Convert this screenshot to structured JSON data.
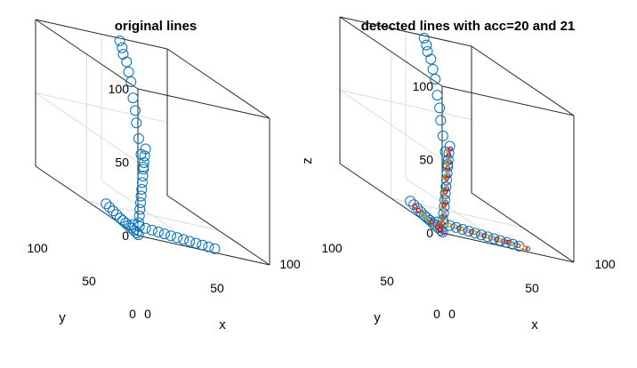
{
  "chart_data": [
    {
      "type": "scatter",
      "projection": "3d",
      "title": "original lines",
      "xlabel": "x",
      "ylabel": "y",
      "zlabel": "",
      "xlim": [
        0,
        100
      ],
      "ylim": [
        0,
        100
      ],
      "zlim": [
        0,
        100
      ],
      "xticks": [
        "0",
        "50",
        "100"
      ],
      "yticks": [
        "0",
        "50",
        "100"
      ],
      "zticks": [
        "0",
        "50",
        "100"
      ],
      "grid": true,
      "legend": "none",
      "series": [
        {
          "color": "#0072BD",
          "marker": "circle-open",
          "points": [
            [
              3,
              3,
              8
            ],
            [
              5,
              5,
              12
            ],
            [
              7,
              7,
              16
            ],
            [
              9,
              9,
              20
            ],
            [
              11,
              11,
              24
            ],
            [
              13,
              13,
              28
            ],
            [
              15,
              15,
              32
            ],
            [
              17,
              17,
              36
            ],
            [
              19,
              19,
              40
            ],
            [
              21,
              21,
              44
            ],
            [
              23,
              23,
              48
            ],
            [
              26,
              26,
              52
            ],
            [
              8,
              15,
              2
            ],
            [
              12,
              14,
              2
            ],
            [
              16,
              13,
              2
            ],
            [
              20,
              12,
              2
            ],
            [
              24,
              11,
              2
            ],
            [
              28,
              10,
              2
            ],
            [
              32,
              9,
              2
            ],
            [
              36,
              8,
              2
            ],
            [
              40,
              7,
              2
            ],
            [
              44,
              6,
              2
            ],
            [
              48,
              5,
              2
            ],
            [
              52,
              4,
              2
            ],
            [
              56,
              3,
              2
            ],
            [
              60,
              2,
              2
            ],
            [
              2,
              2,
              0
            ],
            [
              3,
              5,
              0
            ],
            [
              4,
              9,
              0
            ],
            [
              5,
              13,
              0
            ],
            [
              6,
              17,
              0
            ],
            [
              7,
              21,
              0
            ],
            [
              8,
              25,
              0
            ],
            [
              9,
              29,
              0
            ],
            [
              11,
              35,
              0
            ],
            [
              13,
              41,
              0
            ],
            [
              15,
              47,
              0
            ],
            [
              17,
              53,
              0
            ],
            [
              50,
              82,
              104
            ],
            [
              51,
              81,
              100
            ],
            [
              51,
              80,
              96
            ],
            [
              52,
              78,
              92
            ],
            [
              52,
              76,
              86
            ],
            [
              53,
              75,
              80
            ],
            [
              53,
              73,
              70
            ],
            [
              54,
              72,
              62
            ],
            [
              54,
              71,
              54
            ],
            [
              55,
              70,
              44
            ],
            [
              56,
              69,
              34
            ],
            [
              57,
              68,
              26
            ]
          ]
        }
      ]
    },
    {
      "type": "scatter",
      "projection": "3d",
      "title": "detected lines with acc=20 and 21",
      "xlabel": "x",
      "ylabel": "y",
      "zlabel": "z",
      "xlim": [
        0,
        100
      ],
      "ylim": [
        0,
        100
      ],
      "zlim": [
        0,
        100
      ],
      "xticks": [
        "0",
        "50",
        "100"
      ],
      "yticks": [
        "0",
        "50",
        "100"
      ],
      "zticks": [
        "0",
        "50",
        "100"
      ],
      "grid": true,
      "legend": "none",
      "series": [
        {
          "color": "#0072BD",
          "marker": "circle-open",
          "points": [
            [
              3,
              3,
              8
            ],
            [
              5,
              5,
              12
            ],
            [
              7,
              7,
              16
            ],
            [
              9,
              9,
              20
            ],
            [
              11,
              11,
              24
            ],
            [
              13,
              13,
              28
            ],
            [
              15,
              15,
              32
            ],
            [
              17,
              17,
              36
            ],
            [
              19,
              19,
              40
            ],
            [
              21,
              21,
              44
            ],
            [
              23,
              23,
              48
            ],
            [
              26,
              26,
              52
            ],
            [
              8,
              15,
              2
            ],
            [
              12,
              14,
              2
            ],
            [
              16,
              13,
              2
            ],
            [
              20,
              12,
              2
            ],
            [
              24,
              11,
              2
            ],
            [
              28,
              10,
              2
            ],
            [
              32,
              9,
              2
            ],
            [
              36,
              8,
              2
            ],
            [
              40,
              7,
              2
            ],
            [
              44,
              6,
              2
            ],
            [
              48,
              5,
              2
            ],
            [
              52,
              4,
              2
            ],
            [
              56,
              3,
              2
            ],
            [
              60,
              2,
              2
            ],
            [
              2,
              2,
              0
            ],
            [
              3,
              5,
              0
            ],
            [
              4,
              9,
              0
            ],
            [
              5,
              13,
              0
            ],
            [
              6,
              17,
              0
            ],
            [
              7,
              21,
              0
            ],
            [
              8,
              25,
              0
            ],
            [
              9,
              29,
              0
            ],
            [
              11,
              35,
              0
            ],
            [
              13,
              41,
              0
            ],
            [
              15,
              47,
              0
            ],
            [
              17,
              53,
              0
            ],
            [
              50,
              82,
              104
            ],
            [
              51,
              81,
              100
            ],
            [
              51,
              80,
              96
            ],
            [
              52,
              78,
              92
            ],
            [
              52,
              76,
              86
            ],
            [
              53,
              75,
              80
            ],
            [
              53,
              73,
              70
            ],
            [
              54,
              72,
              62
            ],
            [
              54,
              71,
              54
            ],
            [
              55,
              70,
              44
            ],
            [
              56,
              69,
              34
            ],
            [
              57,
              68,
              26
            ]
          ]
        },
        {
          "color": "#D95319",
          "marker": "circle-small",
          "points": [
            [
              2,
              2,
              4
            ],
            [
              4,
              4,
              9
            ],
            [
              6,
              6,
              14
            ],
            [
              8,
              8,
              18
            ],
            [
              10,
              10,
              22
            ],
            [
              12,
              12,
              26
            ],
            [
              14,
              14,
              30
            ],
            [
              16,
              16,
              34
            ],
            [
              18,
              18,
              38
            ],
            [
              20,
              20,
              42
            ],
            [
              22,
              22,
              46
            ],
            [
              24,
              24,
              50
            ],
            [
              10,
              15,
              2
            ],
            [
              18,
              13,
              2
            ],
            [
              26,
              11,
              2
            ],
            [
              34,
              9,
              2
            ],
            [
              42,
              7,
              2
            ],
            [
              50,
              5,
              2
            ],
            [
              58,
              3,
              2
            ],
            [
              64,
              1,
              2
            ],
            [
              2,
              3,
              0
            ],
            [
              4,
              11,
              0
            ],
            [
              6,
              19,
              0
            ],
            [
              8,
              27,
              0
            ],
            [
              10,
              33,
              0
            ],
            [
              14,
              45,
              0
            ]
          ]
        },
        {
          "color": "#EDB120",
          "marker": "circle-small",
          "points": [
            [
              3,
              4,
              6
            ],
            [
              7,
              8,
              15
            ],
            [
              11,
              12,
              24
            ],
            [
              15,
              16,
              33
            ],
            [
              19,
              20,
              41
            ],
            [
              23,
              24,
              49
            ],
            [
              14,
              14,
              2
            ],
            [
              22,
              12,
              2
            ],
            [
              30,
              10,
              2
            ],
            [
              38,
              8,
              2
            ],
            [
              46,
              6,
              2
            ],
            [
              54,
              4,
              2
            ],
            [
              62,
              2,
              2
            ],
            [
              3,
              7,
              0
            ],
            [
              5,
              15,
              0
            ],
            [
              7,
              23,
              0
            ],
            [
              9,
              31,
              0
            ],
            [
              12,
              39,
              0
            ]
          ]
        },
        {
          "color": "#7E2F8E",
          "marker": "circle-small",
          "points": [
            [
              5,
              4,
              11
            ],
            [
              9,
              8,
              19
            ],
            [
              13,
              12,
              27
            ],
            [
              17,
              16,
              35
            ],
            [
              21,
              20,
              43
            ],
            [
              25,
              24,
              51
            ],
            [
              12,
              15,
              2
            ],
            [
              20,
              13,
              2
            ],
            [
              28,
              11,
              2
            ],
            [
              36,
              9,
              2
            ],
            [
              44,
              7,
              2
            ],
            [
              52,
              5,
              2
            ],
            [
              60,
              3,
              2
            ],
            [
              66,
              1,
              2
            ],
            [
              2,
              1,
              0
            ],
            [
              4,
              7,
              0
            ],
            [
              6,
              15,
              0
            ],
            [
              8,
              23,
              0
            ],
            [
              10,
              31,
              0
            ],
            [
              13,
              43,
              0
            ]
          ]
        },
        {
          "color": "#77AC30",
          "marker": "circle-small",
          "points": [
            [
              4,
              5,
              10
            ],
            [
              8,
              9,
              18
            ],
            [
              12,
              13,
              26
            ],
            [
              16,
              17,
              34
            ],
            [
              20,
              21,
              42
            ],
            [
              16,
              14,
              2
            ],
            [
              24,
              12,
              2
            ],
            [
              32,
              10,
              2
            ],
            [
              40,
              8,
              2
            ],
            [
              48,
              6,
              2
            ],
            [
              56,
              4,
              2
            ],
            [
              3,
              9,
              0
            ],
            [
              5,
              17,
              0
            ],
            [
              7,
              25,
              0
            ],
            [
              9,
              29,
              0
            ]
          ]
        },
        {
          "color": "#4DBEEE",
          "marker": "circle-small",
          "points": [
            [
              6,
              6,
              13
            ],
            [
              10,
              10,
              21
            ],
            [
              14,
              14,
              29
            ],
            [
              18,
              18,
              37
            ],
            [
              22,
              22,
              45
            ],
            [
              20,
              13,
              2
            ],
            [
              28,
              11,
              2
            ],
            [
              36,
              9,
              2
            ],
            [
              44,
              7,
              2
            ],
            [
              58,
              4,
              2
            ],
            [
              4,
              13,
              0
            ],
            [
              6,
              21,
              0
            ],
            [
              8,
              29,
              0
            ]
          ]
        },
        {
          "color": "#A2142F",
          "marker": "circle-small",
          "points": [
            [
              7,
              7,
              17
            ],
            [
              11,
              11,
              25
            ],
            [
              15,
              15,
              33
            ],
            [
              19,
              19,
              39
            ],
            [
              23,
              23,
              47
            ],
            [
              22,
              12,
              2
            ],
            [
              30,
              10,
              2
            ],
            [
              38,
              8,
              2
            ],
            [
              46,
              6,
              2
            ],
            [
              54,
              5,
              2
            ],
            [
              2,
              5,
              0
            ],
            [
              5,
              11,
              0
            ],
            [
              7,
              19,
              0
            ],
            [
              11,
              37,
              0
            ]
          ]
        }
      ]
    }
  ]
}
